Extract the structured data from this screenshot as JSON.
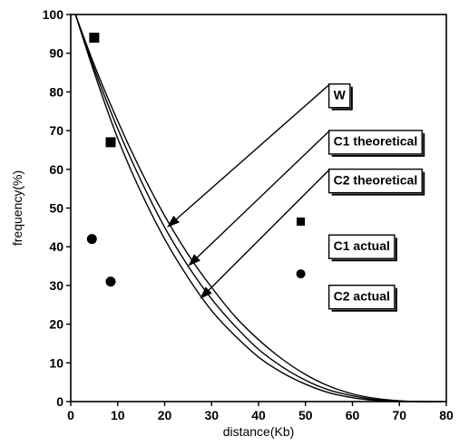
{
  "chart_data": {
    "type": "line",
    "xlabel": "distance(Kb)",
    "ylabel": "frequency(%)",
    "xlim": [
      0,
      80
    ],
    "ylim": [
      0,
      100
    ],
    "x_ticks": [
      0,
      10,
      20,
      30,
      40,
      50,
      60,
      70,
      80
    ],
    "y_ticks": [
      0,
      10,
      20,
      30,
      40,
      50,
      60,
      70,
      80,
      90,
      100
    ],
    "grid": false,
    "series": [
      {
        "name": "W",
        "kind": "line",
        "x": [
          1,
          5,
          10,
          15,
          20,
          25,
          30,
          35,
          40,
          45,
          50,
          55,
          60,
          65,
          70,
          75,
          79
        ],
        "y": [
          100,
          87,
          72.5,
          59.5,
          48,
          38,
          29.5,
          22,
          16,
          11,
          7,
          4,
          2,
          0.8,
          0.2,
          0,
          0
        ]
      },
      {
        "name": "C1 theoretical",
        "kind": "line",
        "x": [
          1,
          5,
          10,
          15,
          20,
          25,
          30,
          35,
          40,
          45,
          50,
          55,
          60,
          65,
          70,
          75,
          78
        ],
        "y": [
          100,
          86,
          70.5,
          57,
          45,
          35,
          26.5,
          19.5,
          13.5,
          9,
          5.5,
          3,
          1.5,
          0.5,
          0.1,
          0,
          0
        ]
      },
      {
        "name": "C2 theoretical",
        "kind": "line",
        "x": [
          1,
          5,
          10,
          15,
          20,
          25,
          30,
          35,
          40,
          45,
          50,
          55,
          60,
          65,
          70,
          75,
          77
        ],
        "y": [
          100,
          85,
          68,
          54,
          42,
          32,
          23.5,
          17,
          11.5,
          7.5,
          4.5,
          2.3,
          1,
          0.3,
          0,
          0,
          0
        ]
      },
      {
        "name": "C1 actual",
        "kind": "scatter",
        "marker": "square",
        "x": [
          5,
          8.5
        ],
        "y": [
          94,
          67
        ]
      },
      {
        "name": "C2 actual",
        "kind": "scatter",
        "marker": "circle",
        "x": [
          4.5,
          8.5
        ],
        "y": [
          42,
          31
        ]
      }
    ],
    "annotations": [
      {
        "text": "W",
        "box_x": 55,
        "box_y": 79,
        "arrow_to_x": 20.5,
        "arrow_to_y": 45
      },
      {
        "text": "C1 theoretical",
        "box_x": 55,
        "box_y": 67,
        "arrow_to_x": 25,
        "arrow_to_y": 35
      },
      {
        "text": "C2 theoretical",
        "box_x": 55,
        "box_y": 57,
        "arrow_to_x": 27.5,
        "arrow_to_y": 26.5
      },
      {
        "text": "C1 actual",
        "box_x": 55,
        "box_y": 40
      },
      {
        "text": "C2 actual",
        "box_x": 55,
        "box_y": 27
      }
    ],
    "legend_markers": [
      {
        "series": "C1 actual",
        "marker": "square",
        "x": 49,
        "y": 46.5
      },
      {
        "series": "C2 actual",
        "marker": "circle",
        "x": 49,
        "y": 33
      }
    ]
  }
}
